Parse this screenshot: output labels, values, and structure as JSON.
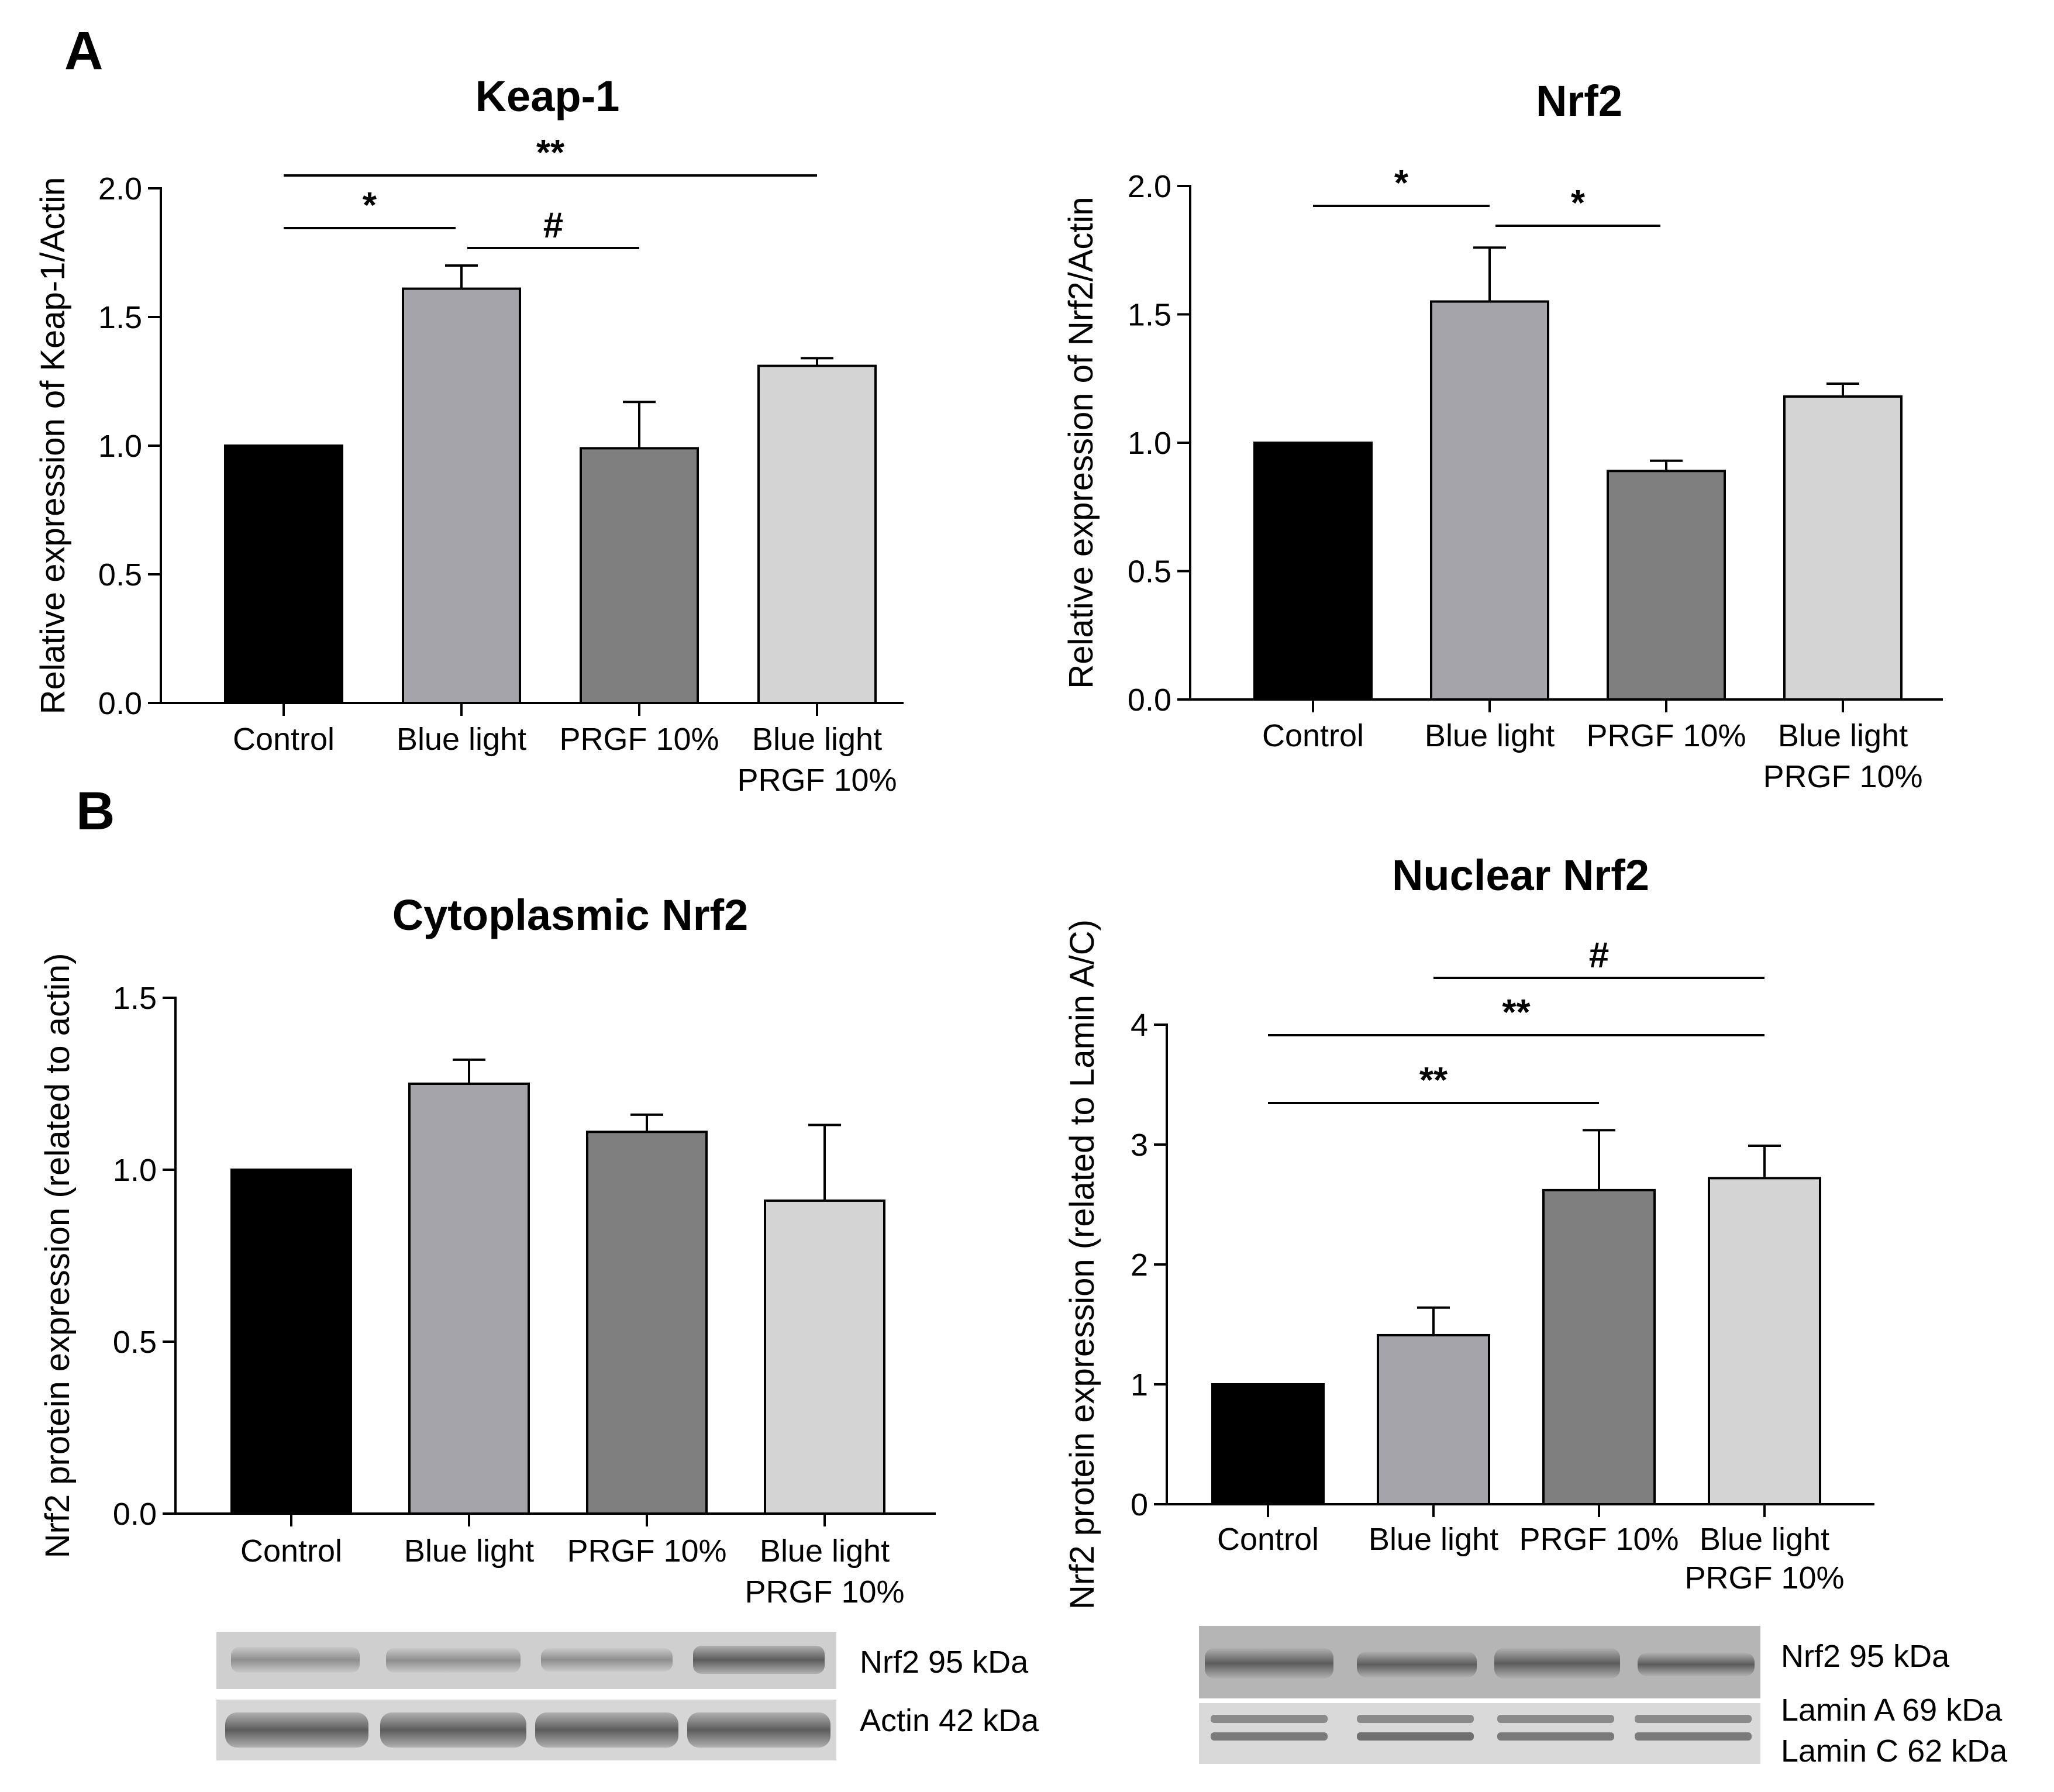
{
  "figure": {
    "panel_a_letter": "A",
    "panel_b_letter": "B"
  },
  "chart_data": [
    {
      "id": "keap1",
      "type": "bar",
      "title": "Keap-1",
      "xlabel": "",
      "ylabel": "Relative expression of Keap-1/Actin",
      "categories": [
        "Control",
        "Blue light",
        "PRGF 10%",
        "Blue light\nPRGF 10%"
      ],
      "values": [
        1.0,
        1.61,
        0.99,
        1.31
      ],
      "errors": [
        0.0,
        0.09,
        0.18,
        0.03
      ],
      "colors": [
        "#000000",
        "#a5a4ab",
        "#7f7f7f",
        "#d4d4d4"
      ],
      "ylim": [
        0,
        2.0
      ],
      "yticks": [
        "0.0",
        "0.5",
        "1.0",
        "1.5",
        "2.0"
      ],
      "significance": [
        {
          "from": 0,
          "to": 3,
          "label": "**"
        },
        {
          "from": 0,
          "to": 1,
          "label": "*"
        },
        {
          "from": 1,
          "to": 2,
          "label": "#"
        }
      ]
    },
    {
      "id": "nrf2",
      "type": "bar",
      "title": "Nrf2",
      "xlabel": "",
      "ylabel": "Relative expression of Nrf2/Actin",
      "categories": [
        "Control",
        "Blue light",
        "PRGF 10%",
        "Blue light\nPRGF 10%"
      ],
      "values": [
        1.0,
        1.55,
        0.89,
        1.18
      ],
      "errors": [
        0.0,
        0.21,
        0.04,
        0.05
      ],
      "colors": [
        "#000000",
        "#a5a4ab",
        "#7f7f7f",
        "#d4d4d4"
      ],
      "ylim": [
        0,
        2.0
      ],
      "yticks": [
        "0.0",
        "0.5",
        "1.0",
        "1.5",
        "2.0"
      ],
      "significance": [
        {
          "from": 0,
          "to": 1,
          "label": "*"
        },
        {
          "from": 1,
          "to": 2,
          "label": "*"
        }
      ]
    },
    {
      "id": "cyto",
      "type": "bar",
      "title": "Cytoplasmic Nrf2",
      "xlabel": "",
      "ylabel": "Nrf2 protein expression (related to actin)",
      "categories": [
        "Control",
        "Blue light",
        "PRGF 10%",
        "Blue light\nPRGF 10%"
      ],
      "values": [
        1.0,
        1.25,
        1.11,
        0.91
      ],
      "errors": [
        0.0,
        0.07,
        0.05,
        0.22
      ],
      "colors": [
        "#000000",
        "#a5a4ab",
        "#7f7f7f",
        "#d4d4d4"
      ],
      "ylim": [
        0,
        1.5
      ],
      "yticks": [
        "0.0",
        "0.5",
        "1.0",
        "1.5"
      ],
      "significance": []
    },
    {
      "id": "nuclear",
      "type": "bar",
      "title": "Nuclear Nrf2",
      "xlabel": "",
      "ylabel": "Nrf2 protein expression (related to Lamin A/C)",
      "categories": [
        "Control",
        "Blue light",
        "PRGF 10%",
        "Blue light\nPRGF 10%"
      ],
      "values": [
        1.0,
        1.41,
        2.62,
        2.72
      ],
      "errors": [
        0.0,
        0.23,
        0.5,
        0.27
      ],
      "colors": [
        "#000000",
        "#a5a4ab",
        "#7f7f7f",
        "#d4d4d4"
      ],
      "ylim": [
        0,
        4
      ],
      "yticks": [
        "0",
        "1",
        "2",
        "3",
        "4"
      ],
      "significance": [
        {
          "from": 1,
          "to": 3,
          "label": "#"
        },
        {
          "from": 0,
          "to": 3,
          "label": "**"
        },
        {
          "from": 0,
          "to": 2,
          "label": "**"
        }
      ]
    }
  ],
  "blots": {
    "left": {
      "top_label": "Nrf2 95 kDa",
      "bottom_label": "Actin 42 kDa"
    },
    "right": {
      "top_label": "Nrf2 95 kDa",
      "bottom_label_1": "Lamin A 69 kDa",
      "bottom_label_2": "Lamin C 62 kDa"
    }
  }
}
